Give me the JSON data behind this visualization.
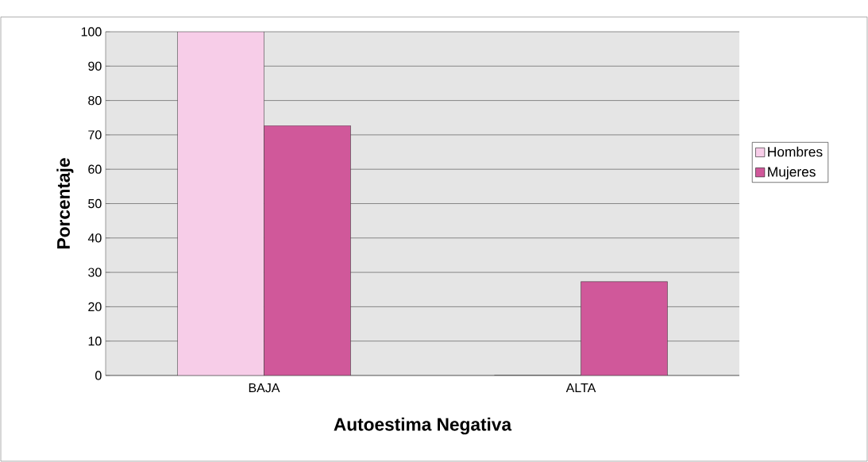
{
  "chart_data": {
    "type": "bar",
    "xlabel": "Autoestima Negativa",
    "ylabel": "Porcentaje",
    "categories": [
      "BAJA",
      "ALTA"
    ],
    "series": [
      {
        "name": "Hombres",
        "color": "#f7cde8",
        "values": [
          100,
          0
        ]
      },
      {
        "name": "Mujeres",
        "color": "#d0589a",
        "values": [
          72.7,
          27.3
        ]
      }
    ],
    "ylim": [
      0,
      100
    ],
    "yticks": [
      0,
      10,
      20,
      30,
      40,
      50,
      60,
      70,
      80,
      90,
      100
    ],
    "grid": "y",
    "legend": "right"
  }
}
